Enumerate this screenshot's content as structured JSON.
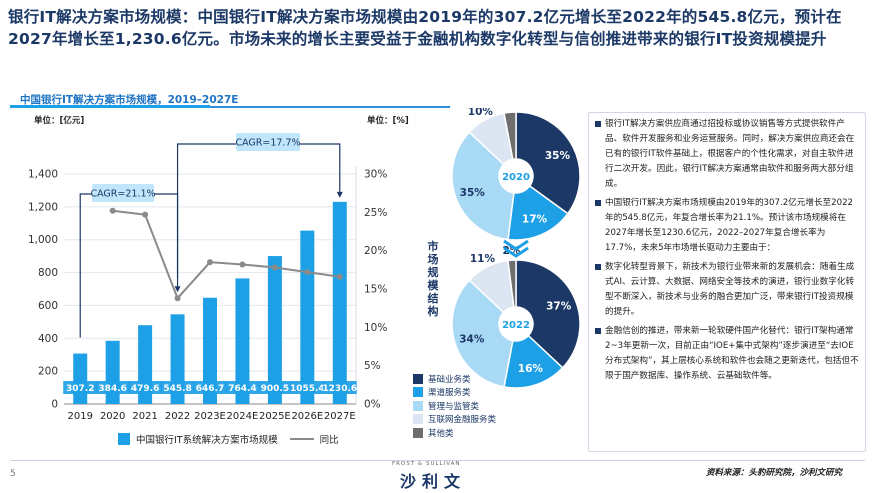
{
  "headline": "银行IT解决方案市场规模：中国银行IT解决方案市场规模由2019年的307.2亿元增长至2022年的545.8亿元，预计在2027年增长至1,230.6亿元。市场未来的增长主要受益于金融机构数字化转型与信创推进带来的银行IT投资规模提升",
  "chart_title": "中国银行IT解决方案市场规模，2019–2027E",
  "unit_left": "单位：[亿元]",
  "unit_right": "单位：[%]",
  "pie_axis_label": "市场规模结构",
  "legend_bar": "中国银行IT系统解决方案市场规模",
  "legend_line": "同比",
  "colors": {
    "bar": "#1ea0e6",
    "line": "#8a8a8a",
    "pie_core": "#1b3866",
    "pie_channel": "#1ea0e6",
    "pie_mgmt": "#a8d9f5",
    "pie_internet": "#dbe6f2",
    "pie_other": "#6e6e6e"
  },
  "chart_data": [
    {
      "type": "bar",
      "categories": [
        "2019",
        "2020",
        "2021",
        "2022",
        "2023E",
        "2024E",
        "2025E",
        "2026E",
        "2027E"
      ],
      "series": [
        {
          "name": "中国银行IT系统解决方案市场规模",
          "values": [
            307.2,
            384.6,
            479.6,
            545.8,
            646.7,
            764.4,
            900.5,
            1055.4,
            1230.6
          ]
        },
        {
          "name": "同比",
          "type": "line",
          "axis": "right",
          "values": [
            null,
            25.2,
            24.7,
            13.8,
            18.5,
            18.2,
            17.8,
            17.2,
            16.6
          ]
        }
      ],
      "data_labels": [
        "307.2",
        "384.6",
        "479.6",
        "545.8",
        "646.7",
        "764.4",
        "900.5",
        "1055.4",
        "1230.6"
      ],
      "yticks_left": [
        "0",
        "200",
        "400",
        "600",
        "800",
        "1,000",
        "1,200",
        "1,400"
      ],
      "ylim_left": [
        0,
        1400
      ],
      "yticks_right": [
        "0%",
        "5%",
        "10%",
        "15%",
        "20%",
        "25%",
        "30%"
      ],
      "ylim_right": [
        0,
        30
      ],
      "annotations": [
        "CAGR=21.1%",
        "CAGR=17.7%"
      ]
    },
    {
      "type": "pie",
      "center_label": "2020",
      "categories": [
        "基础业务类",
        "渠道服务类",
        "管理与监管类",
        "互联网金融服务类",
        "其他类"
      ],
      "values": [
        35,
        17,
        35,
        10,
        3
      ],
      "labels": [
        "35%",
        "17%",
        "35%",
        "10%",
        "3%"
      ]
    },
    {
      "type": "pie",
      "center_label": "2022",
      "categories": [
        "基础业务类",
        "渠道服务类",
        "管理与监管类",
        "互联网金融服务类",
        "其他类"
      ],
      "values": [
        37,
        16,
        34,
        11,
        2
      ],
      "labels": [
        "37%",
        "16%",
        "34%",
        "11%",
        "2%"
      ]
    }
  ],
  "textbox": {
    "p1": "银行IT解决方案供应商通过招投标或协议销售等方式提供软件产品、软件开发服务和业务运营服务。同时，解决方案供应商还会在已有的银行IT软件基础上，根据客户的个性化需求，对自主软件进行二次开发。因此，银行IT解决方案通常由软件和服务两大部分组成。",
    "p2": "中国银行IT解决方案市场规模由2019年的307.2亿元增长至2022年的545.8亿元，年复合增长率为21.1%。预计该市场规模将在2027年增长至1230.6亿元，2022–2027年复合增长率为17.7%，未来5年市场增长驱动力主要由于：",
    "p3": "数字化转型背景下，新技术为银行业带来新的发展机会：随着生成式AI、云计算、大数据、网络安全等技术的演进，银行业数字化转型不断深入，新技术与业务的融合更加广泛，带来银行IT投资规模的提升。",
    "p4": "金融信创的推进，带来新一轮软硬件国产化替代：银行IT架构通常2~3年更新一次，目前正由“IOE+集中式架构”逐步演进至“去IOE分布式架构”，其上层核心系统和软件也会随之更新迭代，包括但不限于国产数据库、操作系统、云基础软件等。"
  },
  "footer": {
    "page": "5",
    "logo_small": "FROST & SULLIVAN",
    "logo": "沙利文",
    "source": "资料来源：头豹研究院，沙利文研究"
  }
}
